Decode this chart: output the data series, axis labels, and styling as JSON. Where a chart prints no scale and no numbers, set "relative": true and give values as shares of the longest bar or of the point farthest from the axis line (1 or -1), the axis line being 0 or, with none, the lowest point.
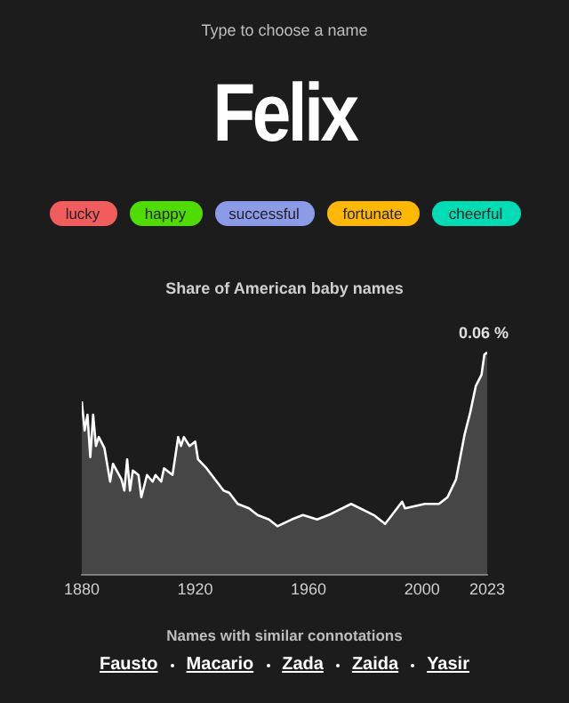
{
  "chart_data": {
    "type": "area",
    "title": "Share of American baby names",
    "annotations": [
      "Type to choose a name",
      "Felix",
      "lucky",
      "happy",
      "successful",
      "fortunate",
      "cheerful",
      "Names with similar connotations",
      "Fausto",
      "Macario",
      "Zada",
      "Zaida",
      "Yasir",
      {
        "text": "0.06 %",
        "x": 2023,
        "y": 1
      }
    ],
    "relative": true,
    "x": [
      1880,
      1881,
      1882,
      1883,
      1884,
      1885,
      1886,
      1888,
      1890,
      1891,
      1894,
      1895,
      1896,
      1897,
      1898,
      1900,
      1901,
      1903,
      1905,
      1906,
      1908,
      1909,
      1912,
      1914,
      1915,
      1916,
      1918,
      1920,
      1921,
      1924,
      1927,
      1930,
      1932,
      1935,
      1939,
      1942,
      1946,
      1949,
      1954,
      1958,
      1963,
      1967,
      1975,
      1983,
      1987,
      1993,
      1994,
      2001,
      2006,
      2009,
      2012,
      2015,
      2017,
      2019,
      2021,
      2022,
      2023
    ],
    "series": [
      {
        "color": "#ffffff",
        "values": [
          0.78,
          0.65,
          0.72,
          0.53,
          0.72,
          0.58,
          0.62,
          0.57,
          0.42,
          0.5,
          0.43,
          0.38,
          0.52,
          0.38,
          0.47,
          0.45,
          0.35,
          0.45,
          0.42,
          0.45,
          0.42,
          0.48,
          0.45,
          0.62,
          0.58,
          0.62,
          0.58,
          0.6,
          0.52,
          0.48,
          0.43,
          0.38,
          0.37,
          0.32,
          0.3,
          0.27,
          0.25,
          0.22,
          0.25,
          0.27,
          0.25,
          0.27,
          0.32,
          0.27,
          0.23,
          0.33,
          0.3,
          0.32,
          0.32,
          0.35,
          0.43,
          0.63,
          0.73,
          0.85,
          0.9,
          0.99,
          1
        ]
      }
    ],
    "xlim": [
      1880,
      2023
    ],
    "xticks": [
      1880,
      1920,
      1960,
      2000,
      2023
    ],
    "grid": false
  }
}
